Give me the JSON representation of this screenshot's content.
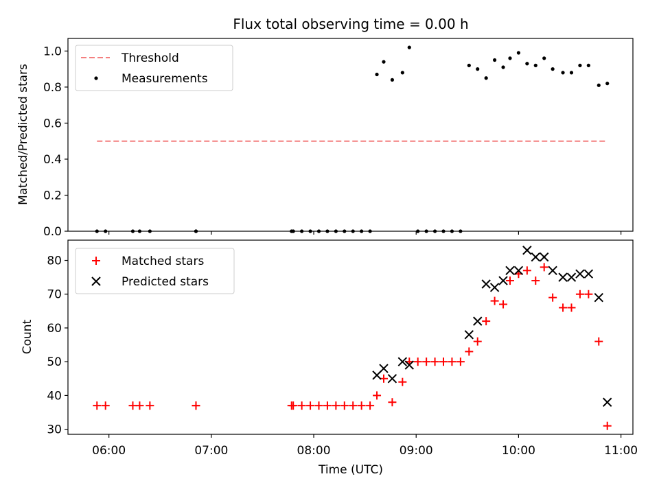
{
  "chart_data": [
    {
      "type": "scatter",
      "title": "Flux total observing time = 0.00 h",
      "xlabel": "",
      "ylabel": "Matched/Predicted stars",
      "ylim": [
        0,
        1.07
      ],
      "yticks": [
        0.0,
        0.2,
        0.4,
        0.6,
        0.8,
        1.0
      ],
      "ytick_labels": [
        "0.0",
        "0.2",
        "0.4",
        "0.6",
        "0.8",
        "1.0"
      ],
      "xlim": [
        "05:36",
        "11:07"
      ],
      "legend": {
        "placement": "top-left",
        "entries": [
          "Threshold",
          "Measurements"
        ]
      },
      "threshold": {
        "name": "Threshold",
        "value": 0.5,
        "x_start": "05:53",
        "x_end": "10:52",
        "color": "#f47f7f",
        "style": "dashed"
      },
      "series": [
        {
          "name": "Measurements",
          "marker": "dot",
          "color": "#000000",
          "x": [
            "05:53",
            "05:58",
            "06:14",
            "06:18",
            "06:24",
            "06:51",
            "06:51",
            "07:47",
            "07:48",
            "07:53",
            "07:58",
            "08:03",
            "08:08",
            "08:13",
            "08:18",
            "08:23",
            "08:28",
            "08:33",
            "08:37",
            "08:41",
            "08:46",
            "08:52",
            "08:56",
            "09:01",
            "09:06",
            "09:11",
            "09:16",
            "09:21",
            "09:26",
            "09:31",
            "09:36",
            "09:41",
            "09:46",
            "09:51",
            "09:55",
            "10:00",
            "10:05",
            "10:10",
            "10:15",
            "10:20",
            "10:26",
            "10:31",
            "10:36",
            "10:41",
            "10:47",
            "10:52"
          ],
          "y": [
            0,
            0,
            0,
            0,
            0,
            0,
            0,
            0,
            0,
            0,
            0,
            0,
            0,
            0,
            0,
            0,
            0,
            0,
            0.87,
            0.94,
            0.84,
            0.88,
            1.02,
            0,
            0,
            0,
            0,
            0,
            0,
            0.92,
            0.9,
            0.85,
            0.95,
            0.91,
            0.96,
            0.99,
            0.93,
            0.92,
            0.96,
            0.9,
            0.88,
            0.88,
            0.92,
            0.92,
            0.81,
            0.82
          ]
        }
      ]
    },
    {
      "type": "scatter",
      "title": "",
      "xlabel": "Time (UTC)",
      "ylabel": "Count",
      "ylim": [
        28.5,
        86
      ],
      "yticks": [
        30,
        40,
        50,
        60,
        70,
        80
      ],
      "ytick_labels": [
        "30",
        "40",
        "50",
        "60",
        "70",
        "80"
      ],
      "xlim": [
        "05:36",
        "11:07"
      ],
      "xticks": [
        "06:00",
        "07:00",
        "08:00",
        "09:00",
        "10:00",
        "11:00"
      ],
      "xtick_labels": [
        "06:00",
        "07:00",
        "08:00",
        "09:00",
        "10:00",
        "11:00"
      ],
      "legend": {
        "placement": "top-left",
        "entries": [
          "Matched stars",
          "Predicted stars"
        ]
      },
      "series": [
        {
          "name": "Matched stars",
          "marker": "plus",
          "color": "#ff0000",
          "x": [
            "05:53",
            "05:58",
            "06:14",
            "06:18",
            "06:24",
            "06:51",
            "06:51",
            "07:47",
            "07:48",
            "07:53",
            "07:58",
            "08:03",
            "08:08",
            "08:13",
            "08:18",
            "08:23",
            "08:28",
            "08:33",
            "08:37",
            "08:41",
            "08:46",
            "08:52",
            "08:56",
            "09:01",
            "09:06",
            "09:11",
            "09:16",
            "09:21",
            "09:26",
            "09:31",
            "09:36",
            "09:41",
            "09:46",
            "09:51",
            "09:55",
            "10:00",
            "10:05",
            "10:10",
            "10:15",
            "10:20",
            "10:26",
            "10:31",
            "10:36",
            "10:41",
            "10:47",
            "10:52"
          ],
          "y": [
            37,
            37,
            37,
            37,
            37,
            37,
            37,
            37,
            37,
            37,
            37,
            37,
            37,
            37,
            37,
            37,
            37,
            37,
            40,
            45,
            38,
            44,
            50,
            50,
            50,
            50,
            50,
            50,
            50,
            53,
            56,
            62,
            68,
            67,
            74,
            76,
            77,
            74,
            78,
            69,
            66,
            66,
            70,
            70,
            56,
            31
          ]
        },
        {
          "name": "Predicted stars",
          "marker": "x",
          "color": "#000000",
          "x": [
            "08:37",
            "08:41",
            "08:46",
            "08:52",
            "08:56",
            "09:31",
            "09:36",
            "09:41",
            "09:46",
            "09:51",
            "09:55",
            "10:00",
            "10:05",
            "10:10",
            "10:15",
            "10:20",
            "10:26",
            "10:31",
            "10:36",
            "10:41",
            "10:47",
            "10:52"
          ],
          "y": [
            46,
            48,
            45,
            50,
            49,
            58,
            62,
            73,
            72,
            74,
            77,
            77,
            83,
            81,
            81,
            77,
            75,
            75,
            76,
            76,
            69,
            38
          ]
        }
      ]
    }
  ]
}
